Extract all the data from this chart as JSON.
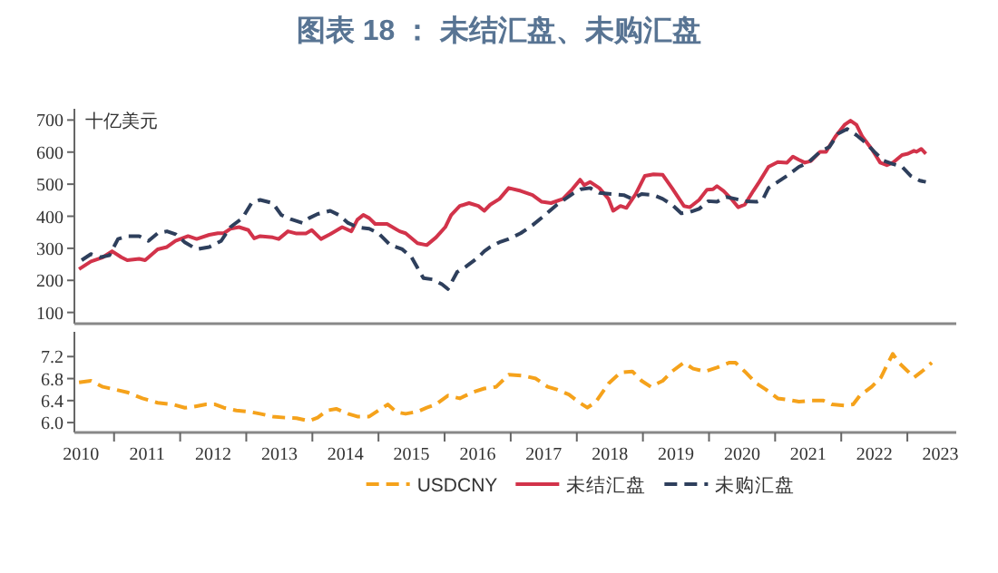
{
  "chart_data": [
    {
      "type": "line",
      "title": "图表 18 ： 未结汇盘、未购汇盘",
      "ylabel": "十亿美元",
      "xlim": [
        2010.4,
        2023.74
      ],
      "ylim": [
        65,
        735
      ],
      "yticks": [
        100,
        200,
        300,
        400,
        500,
        600,
        700
      ],
      "tick_labels": "y",
      "legend": "bottom",
      "series": [
        {
          "name": "未结汇盘",
          "color": "#d2334a",
          "line_style": "solid",
          "x": [
            2010.47,
            2010.65,
            2010.83,
            2010.97,
            2011.11,
            2011.2,
            2011.38,
            2011.47,
            2011.66,
            2011.8,
            2011.93,
            2012.12,
            2012.25,
            2012.44,
            2012.57,
            2012.66,
            2012.76,
            2012.89,
            2013.03,
            2013.12,
            2013.21,
            2013.4,
            2013.49,
            2013.63,
            2013.76,
            2013.9,
            2013.99,
            2014.13,
            2014.27,
            2014.45,
            2014.59,
            2014.68,
            2014.77,
            2014.86,
            2014.95,
            2015.13,
            2015.32,
            2015.41,
            2015.59,
            2015.73,
            2015.87,
            2016.01,
            2016.1,
            2016.23,
            2016.37,
            2016.51,
            2016.6,
            2016.69,
            2016.83,
            2016.97,
            2017.15,
            2017.33,
            2017.47,
            2017.61,
            2017.79,
            2017.93,
            2018.05,
            2018.11,
            2018.2,
            2018.34,
            2018.48,
            2018.55,
            2018.66,
            2018.75,
            2018.89,
            2019.03,
            2019.16,
            2019.3,
            2019.44,
            2019.62,
            2019.71,
            2019.85,
            2019.97,
            2020.06,
            2020.12,
            2020.22,
            2020.35,
            2020.44,
            2020.54,
            2020.67,
            2020.76,
            2020.9,
            2021.04,
            2021.18,
            2021.27,
            2021.36,
            2021.45,
            2021.54,
            2021.68,
            2021.77,
            2021.91,
            2022.05,
            2022.14,
            2022.23,
            2022.32,
            2022.46,
            2022.59,
            2022.69,
            2022.78,
            2022.92,
            2023.01,
            2023.1,
            2023.14,
            2023.21,
            2023.28
          ],
          "values": [
            235,
            259,
            272,
            291,
            272,
            263,
            267,
            263,
            297,
            304,
            323,
            338,
            329,
            342,
            347,
            347,
            361,
            366,
            357,
            331,
            338,
            334,
            329,
            353,
            346,
            346,
            357,
            329,
            344,
            366,
            353,
            389,
            404,
            394,
            376,
            376,
            353,
            347,
            316,
            310,
            334,
            366,
            404,
            432,
            441,
            432,
            417,
            436,
            454,
            488,
            479,
            466,
            445,
            441,
            454,
            484,
            514,
            497,
            507,
            488,
            454,
            417,
            432,
            426,
            469,
            526,
            531,
            529,
            488,
            432,
            428,
            451,
            483,
            484,
            494,
            479,
            451,
            428,
            436,
            479,
            507,
            554,
            569,
            567,
            586,
            576,
            567,
            572,
            601,
            601,
            648,
            685,
            698,
            685,
            648,
            610,
            567,
            559,
            567,
            591,
            595,
            604,
            601,
            610,
            595
          ]
        },
        {
          "name": "未购汇盘",
          "color": "#2e3f5c",
          "line_style": "dashed",
          "x": [
            2010.51,
            2010.65,
            2010.79,
            2010.93,
            2011.06,
            2011.2,
            2011.38,
            2011.52,
            2011.66,
            2011.8,
            2011.93,
            2012.07,
            2012.25,
            2012.44,
            2012.62,
            2012.76,
            2012.94,
            2013.08,
            2013.21,
            2013.4,
            2013.53,
            2013.67,
            2013.85,
            2013.95,
            2014.08,
            2014.27,
            2014.4,
            2014.54,
            2014.68,
            2014.86,
            2015.0,
            2015.18,
            2015.36,
            2015.5,
            2015.68,
            2015.82,
            2015.96,
            2016.05,
            2016.19,
            2016.33,
            2016.51,
            2016.6,
            2016.69,
            2016.83,
            2016.97,
            2017.15,
            2017.33,
            2017.52,
            2017.7,
            2017.93,
            2018.06,
            2018.2,
            2018.34,
            2018.52,
            2018.71,
            2018.84,
            2018.98,
            2019.16,
            2019.3,
            2019.44,
            2019.58,
            2019.71,
            2019.85,
            2019.99,
            2020.12,
            2020.26,
            2020.4,
            2020.54,
            2020.72,
            2020.81,
            2020.9,
            2021.04,
            2021.18,
            2021.36,
            2021.5,
            2021.68,
            2021.82,
            2021.95,
            2022.09,
            2022.23,
            2022.37,
            2022.5,
            2022.64,
            2022.78,
            2022.92,
            2023.05,
            2023.19,
            2023.28
          ],
          "values": [
            263,
            282,
            272,
            278,
            329,
            338,
            338,
            323,
            347,
            353,
            344,
            319,
            297,
            304,
            323,
            366,
            394,
            441,
            451,
            441,
            404,
            391,
            379,
            394,
            407,
            417,
            404,
            379,
            366,
            361,
            347,
            310,
            297,
            272,
            207,
            203,
            188,
            173,
            226,
            244,
            272,
            291,
            304,
            319,
            329,
            347,
            372,
            404,
            436,
            469,
            484,
            488,
            473,
            469,
            466,
            454,
            469,
            466,
            454,
            436,
            409,
            413,
            423,
            447,
            445,
            460,
            454,
            447,
            445,
            451,
            488,
            507,
            526,
            554,
            567,
            601,
            616,
            657,
            672,
            653,
            629,
            601,
            573,
            563,
            554,
            526,
            511,
            507
          ]
        }
      ]
    },
    {
      "type": "line",
      "xlim": [
        2010.4,
        2023.74
      ],
      "ylim": [
        5.82,
        7.65
      ],
      "yticks": [
        {
          "value": 6,
          "label": "6.0"
        },
        6.4,
        6.8,
        7.2
      ],
      "legend": "bottom",
      "xticks": [
        {
          "value": 2010.5,
          "label": "2010"
        },
        {
          "value": 2011,
          "label": null
        },
        {
          "value": 2011.5,
          "label": "2011"
        },
        {
          "value": 2012,
          "label": null
        },
        {
          "value": 2012.5,
          "label": "2012"
        },
        {
          "value": 2013,
          "label": null
        },
        {
          "value": 2013.5,
          "label": "2013"
        },
        {
          "value": 2014,
          "label": null
        },
        {
          "value": 2014.5,
          "label": "2014"
        },
        {
          "value": 2015,
          "label": null
        },
        {
          "value": 2015.5,
          "label": "2015"
        },
        {
          "value": 2016,
          "label": null
        },
        {
          "value": 2016.5,
          "label": "2016"
        },
        {
          "value": 2017,
          "label": null
        },
        {
          "value": 2017.5,
          "label": "2017"
        },
        {
          "value": 2018,
          "label": null
        },
        {
          "value": 2018.5,
          "label": "2018"
        },
        {
          "value": 2019,
          "label": null
        },
        {
          "value": 2019.5,
          "label": "2019"
        },
        {
          "value": 2020,
          "label": null
        },
        {
          "value": 2020.5,
          "label": "2020"
        },
        {
          "value": 2021,
          "label": null
        },
        {
          "value": 2021.5,
          "label": "2021"
        },
        {
          "value": 2022,
          "label": null
        },
        {
          "value": 2022.5,
          "label": "2022"
        },
        {
          "value": 2023,
          "label": null
        },
        {
          "value": 2023.5,
          "label": "2023"
        }
      ],
      "series": [
        {
          "name": "USDCNY",
          "color": "#f5a21b",
          "line_style": "dashed",
          "x": [
            2010.47,
            2010.65,
            2010.83,
            2011.02,
            2011.2,
            2011.43,
            2011.66,
            2011.89,
            2012.07,
            2012.21,
            2012.39,
            2012.53,
            2012.66,
            2012.85,
            2013.03,
            2013.21,
            2013.4,
            2013.58,
            2013.76,
            2013.95,
            2014.08,
            2014.22,
            2014.36,
            2014.54,
            2014.68,
            2014.86,
            2015.0,
            2015.14,
            2015.27,
            2015.41,
            2015.59,
            2015.73,
            2015.87,
            2016.05,
            2016.23,
            2016.42,
            2016.6,
            2016.78,
            2016.97,
            2017.2,
            2017.38,
            2017.56,
            2017.7,
            2017.88,
            2018.02,
            2018.16,
            2018.29,
            2018.48,
            2018.66,
            2018.84,
            2018.98,
            2019.12,
            2019.3,
            2019.44,
            2019.62,
            2019.76,
            2019.94,
            2020.12,
            2020.31,
            2020.4,
            2020.54,
            2020.72,
            2020.86,
            2021.04,
            2021.22,
            2021.36,
            2021.54,
            2021.73,
            2021.86,
            2022.05,
            2022.18,
            2022.28,
            2022.46,
            2022.6,
            2022.69,
            2022.78,
            2022.87,
            2023.01,
            2023.1,
            2023.24,
            2023.37
          ],
          "values": [
            6.73,
            6.76,
            6.65,
            6.6,
            6.55,
            6.44,
            6.36,
            6.33,
            6.27,
            6.29,
            6.33,
            6.33,
            6.27,
            6.22,
            6.2,
            6.16,
            6.11,
            6.09,
            6.08,
            6.03,
            6.09,
            6.22,
            6.25,
            6.16,
            6.11,
            6.11,
            6.22,
            6.33,
            6.19,
            6.16,
            6.2,
            6.27,
            6.33,
            6.49,
            6.44,
            6.55,
            6.62,
            6.65,
            6.87,
            6.85,
            6.8,
            6.65,
            6.6,
            6.51,
            6.38,
            6.27,
            6.38,
            6.71,
            6.91,
            6.93,
            6.76,
            6.65,
            6.76,
            6.93,
            7.09,
            6.98,
            6.93,
            7.0,
            7.09,
            7.09,
            6.93,
            6.71,
            6.6,
            6.44,
            6.41,
            6.38,
            6.4,
            6.4,
            6.33,
            6.31,
            6.33,
            6.49,
            6.65,
            6.82,
            7.04,
            7.25,
            7.09,
            6.93,
            6.82,
            6.95,
            7.09
          ]
        }
      ]
    }
  ]
}
